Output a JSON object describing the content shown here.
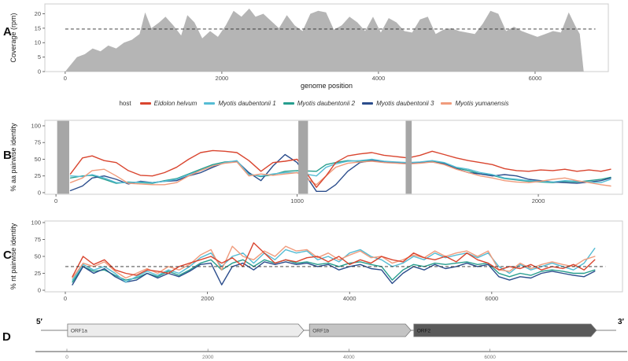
{
  "panels": {
    "a": "A",
    "b": "B",
    "c": "C",
    "d": "D"
  },
  "legend": {
    "title": "host",
    "items": [
      {
        "label": "Eidolon helvum",
        "color": "#d9452f"
      },
      {
        "label": "Myotis daubentonii 1",
        "color": "#55bcd4"
      },
      {
        "label": "Myotis daubentonii 2",
        "color": "#279e8e"
      },
      {
        "label": "Myotis daubentonii 3",
        "color": "#2b4d8c"
      },
      {
        "label": "Myotis yumanensis",
        "color": "#f09b7c"
      }
    ]
  },
  "chart_data": [
    {
      "id": "coverage",
      "type": "area",
      "ylabel": "Coverage (rpm)",
      "xlabel": "genome position",
      "fill": "#b5b5b5",
      "hline": 14.7,
      "xlim": [
        -260,
        6935
      ],
      "ylim": [
        0,
        23.4
      ],
      "xticks": [
        0,
        2000,
        4000,
        6000
      ],
      "yticks": [
        0,
        5,
        10,
        15,
        20
      ],
      "x": [
        0,
        60,
        150,
        250,
        350,
        450,
        550,
        650,
        750,
        850,
        950,
        1020,
        1100,
        1200,
        1280,
        1380,
        1480,
        1560,
        1650,
        1750,
        1850,
        1950,
        2050,
        2150,
        2250,
        2350,
        2430,
        2530,
        2630,
        2730,
        2830,
        2930,
        3030,
        3130,
        3230,
        3330,
        3430,
        3530,
        3630,
        3730,
        3830,
        3930,
        4030,
        4130,
        4230,
        4330,
        4430,
        4530,
        4630,
        4730,
        4830,
        4930,
        5030,
        5130,
        5230,
        5330,
        5430,
        5530,
        5630,
        5730,
        5830,
        5930,
        6030,
        6130,
        6230,
        6330,
        6430,
        6510,
        6570,
        6620
      ],
      "values": [
        0,
        2,
        5,
        6,
        8,
        7,
        9,
        8,
        10,
        11,
        13,
        20.5,
        15,
        17,
        19,
        16,
        12.5,
        19.5,
        17,
        11.5,
        14,
        12,
        16,
        21,
        19,
        21.8,
        19,
        20,
        17.5,
        15,
        19.5,
        16,
        14,
        20,
        21,
        20.5,
        14.5,
        16,
        19,
        17,
        14,
        19,
        13.5,
        18.5,
        17,
        14,
        13.5,
        18,
        19,
        13,
        14.5,
        15,
        14,
        13.5,
        13,
        16.5,
        21,
        20,
        14,
        15.5,
        14,
        13,
        12,
        13,
        14,
        13.5,
        20.5,
        16,
        13,
        0
      ]
    },
    {
      "id": "aa",
      "type": "line",
      "ylabel": "% aa pairwise identity",
      "xlim": [
        -46,
        2349
      ],
      "ylim": [
        -2.4,
        108.2
      ],
      "xticks": [
        0,
        1000,
        2000
      ],
      "yticks": [
        0,
        25,
        50,
        75,
        100
      ],
      "shaded_regions": [
        [
          5,
          55
        ],
        [
          1005,
          1045
        ],
        [
          1450,
          1475
        ]
      ],
      "shaded_color": "#a6a6a6",
      "x": [
        60,
        110,
        150,
        200,
        250,
        300,
        350,
        400,
        450,
        500,
        550,
        600,
        650,
        700,
        750,
        800,
        850,
        900,
        950,
        1000,
        1080,
        1120,
        1160,
        1210,
        1260,
        1310,
        1360,
        1410,
        1460,
        1510,
        1560,
        1610,
        1660,
        1710,
        1760,
        1810,
        1860,
        1910,
        1960,
        2010,
        2060,
        2110,
        2160,
        2210,
        2260,
        2300
      ],
      "series": [
        {
          "name": "Myotis daubentonii 2",
          "color": "#279e8e",
          "values": [
            22,
            25,
            26,
            20,
            14,
            16,
            15,
            14,
            18,
            21,
            28,
            35,
            42,
            46,
            47,
            28,
            24,
            27,
            32,
            33,
            32,
            42,
            45,
            48,
            47,
            49,
            46,
            45,
            44,
            45,
            47,
            44,
            37,
            33,
            28,
            26,
            21,
            19,
            17,
            16,
            15,
            17,
            16,
            18,
            20,
            23
          ]
        },
        {
          "name": "Myotis daubentonii 3",
          "color": "#2b4d8c",
          "values": [
            3,
            10,
            22,
            25,
            20,
            13,
            17,
            15,
            17,
            18,
            25,
            30,
            38,
            45,
            47,
            30,
            18,
            40,
            57,
            45,
            2,
            2,
            12,
            32,
            45,
            48,
            46,
            45,
            44,
            45,
            46,
            43,
            36,
            30,
            28,
            25,
            27,
            25,
            20,
            18,
            16,
            15,
            14,
            16,
            18,
            22
          ]
        },
        {
          "name": "Myotis daubentonii 1",
          "color": "#55bcd4",
          "values": [
            25,
            24,
            27,
            22,
            15,
            15,
            16,
            15,
            17,
            20,
            27,
            33,
            40,
            45,
            48,
            27,
            25,
            28,
            30,
            30,
            25,
            38,
            43,
            47,
            48,
            50,
            47,
            46,
            45,
            46,
            48,
            45,
            38,
            35,
            30,
            27,
            22,
            20,
            18,
            17,
            16,
            18,
            17,
            16,
            15,
            20
          ]
        },
        {
          "name": "Myotis yumanensis",
          "color": "#f09b7c",
          "values": [
            15,
            22,
            33,
            35,
            25,
            14,
            13,
            12,
            12,
            15,
            25,
            33,
            40,
            44,
            46,
            25,
            28,
            26,
            28,
            30,
            12,
            25,
            38,
            44,
            46,
            47,
            45,
            44,
            43,
            44,
            46,
            42,
            35,
            30,
            25,
            22,
            18,
            16,
            15,
            17,
            20,
            22,
            18,
            15,
            12,
            10
          ]
        },
        {
          "name": "Eidolon helvum",
          "color": "#d9452f",
          "values": [
            28,
            52,
            55,
            48,
            45,
            33,
            26,
            25,
            30,
            38,
            50,
            60,
            63,
            62,
            60,
            48,
            32,
            45,
            47,
            50,
            8,
            25,
            45,
            55,
            58,
            60,
            56,
            54,
            52,
            56,
            62,
            57,
            52,
            48,
            45,
            42,
            36,
            33,
            32,
            34,
            33,
            35,
            32,
            34,
            32,
            35
          ]
        }
      ]
    },
    {
      "id": "nt",
      "type": "line",
      "ylabel": "% nt pairwise identity",
      "hline": 35,
      "xlim": [
        -288,
        7840
      ],
      "ylim": [
        -2.3,
        102.3
      ],
      "xticks": [
        0,
        2000,
        4000,
        6000
      ],
      "yticks": [
        0,
        25,
        50,
        75,
        100
      ],
      "x": [
        100,
        250,
        400,
        550,
        700,
        850,
        1000,
        1150,
        1300,
        1450,
        1600,
        1750,
        1900,
        2050,
        2200,
        2350,
        2500,
        2650,
        2800,
        2950,
        3100,
        3250,
        3400,
        3550,
        3700,
        3850,
        4000,
        4150,
        4300,
        4450,
        4600,
        4750,
        4900,
        5050,
        5200,
        5350,
        5500,
        5650,
        5800,
        5950,
        6100,
        6250,
        6400,
        6550,
        6700,
        6850,
        7000,
        7150,
        7300,
        7450
      ],
      "series": [
        {
          "name": "Myotis daubentonii 2",
          "color": "#279e8e",
          "values": [
            12,
            35,
            28,
            30,
            22,
            15,
            18,
            25,
            20,
            28,
            22,
            30,
            40,
            45,
            30,
            40,
            45,
            35,
            45,
            40,
            45,
            40,
            42,
            38,
            40,
            35,
            40,
            42,
            38,
            35,
            15,
            30,
            38,
            35,
            40,
            38,
            40,
            42,
            38,
            40,
            25,
            20,
            25,
            22,
            28,
            30,
            28,
            25,
            25,
            30
          ]
        },
        {
          "name": "Myotis daubentonii 3",
          "color": "#2b4d8c",
          "values": [
            8,
            35,
            25,
            32,
            20,
            12,
            15,
            25,
            18,
            25,
            20,
            28,
            38,
            40,
            8,
            35,
            40,
            30,
            42,
            38,
            42,
            38,
            40,
            35,
            38,
            30,
            35,
            38,
            32,
            30,
            10,
            25,
            35,
            30,
            38,
            32,
            35,
            40,
            35,
            38,
            20,
            15,
            20,
            18,
            25,
            28,
            25,
            22,
            20,
            28
          ]
        },
        {
          "name": "Myotis daubentonii 1",
          "color": "#55bcd4",
          "values": [
            15,
            38,
            30,
            35,
            25,
            12,
            20,
            28,
            22,
            30,
            25,
            35,
            48,
            55,
            35,
            50,
            55,
            40,
            55,
            45,
            60,
            55,
            58,
            45,
            50,
            42,
            55,
            60,
            50,
            45,
            35,
            40,
            50,
            45,
            55,
            48,
            52,
            55,
            48,
            55,
            35,
            25,
            38,
            30,
            35,
            40,
            35,
            30,
            40,
            62
          ]
        },
        {
          "name": "Myotis yumanensis",
          "color": "#f09b7c",
          "values": [
            18,
            40,
            35,
            42,
            28,
            18,
            25,
            32,
            25,
            35,
            30,
            38,
            52,
            60,
            30,
            65,
            50,
            45,
            58,
            50,
            65,
            58,
            60,
            48,
            55,
            45,
            52,
            58,
            48,
            50,
            40,
            45,
            52,
            48,
            58,
            50,
            55,
            58,
            50,
            58,
            30,
            28,
            40,
            32,
            38,
            42,
            38,
            35,
            45,
            50
          ]
        },
        {
          "name": "Eidolon helvum",
          "color": "#d9452f",
          "values": [
            20,
            50,
            38,
            45,
            30,
            25,
            22,
            30,
            28,
            25,
            35,
            40,
            45,
            50,
            40,
            48,
            35,
            70,
            55,
            40,
            45,
            42,
            48,
            50,
            42,
            50,
            38,
            45,
            40,
            50,
            45,
            42,
            55,
            48,
            45,
            50,
            42,
            55,
            45,
            40,
            30,
            35,
            32,
            38,
            30,
            35,
            32,
            38,
            30,
            45
          ]
        }
      ]
    },
    {
      "id": "map",
      "type": "genome-map",
      "five_prime": "5′",
      "three_prime": "3′",
      "orfs": [
        {
          "label": "ORF1a",
          "start": 10,
          "end": 3360,
          "fill": "#ececec",
          "text": "#3a3a3a"
        },
        {
          "label": "ORF1b",
          "start": 3440,
          "end": 4880,
          "fill": "#c4c4c4",
          "text": "#3a3a3a"
        },
        {
          "label": "ORF2",
          "start": 4920,
          "end": 7510,
          "fill": "#5a5a5a",
          "text": "#141414"
        }
      ],
      "axis": {
        "ticks": [
          0,
          2000,
          4000,
          6000
        ],
        "range": [
          -450,
          7950
        ]
      }
    }
  ]
}
